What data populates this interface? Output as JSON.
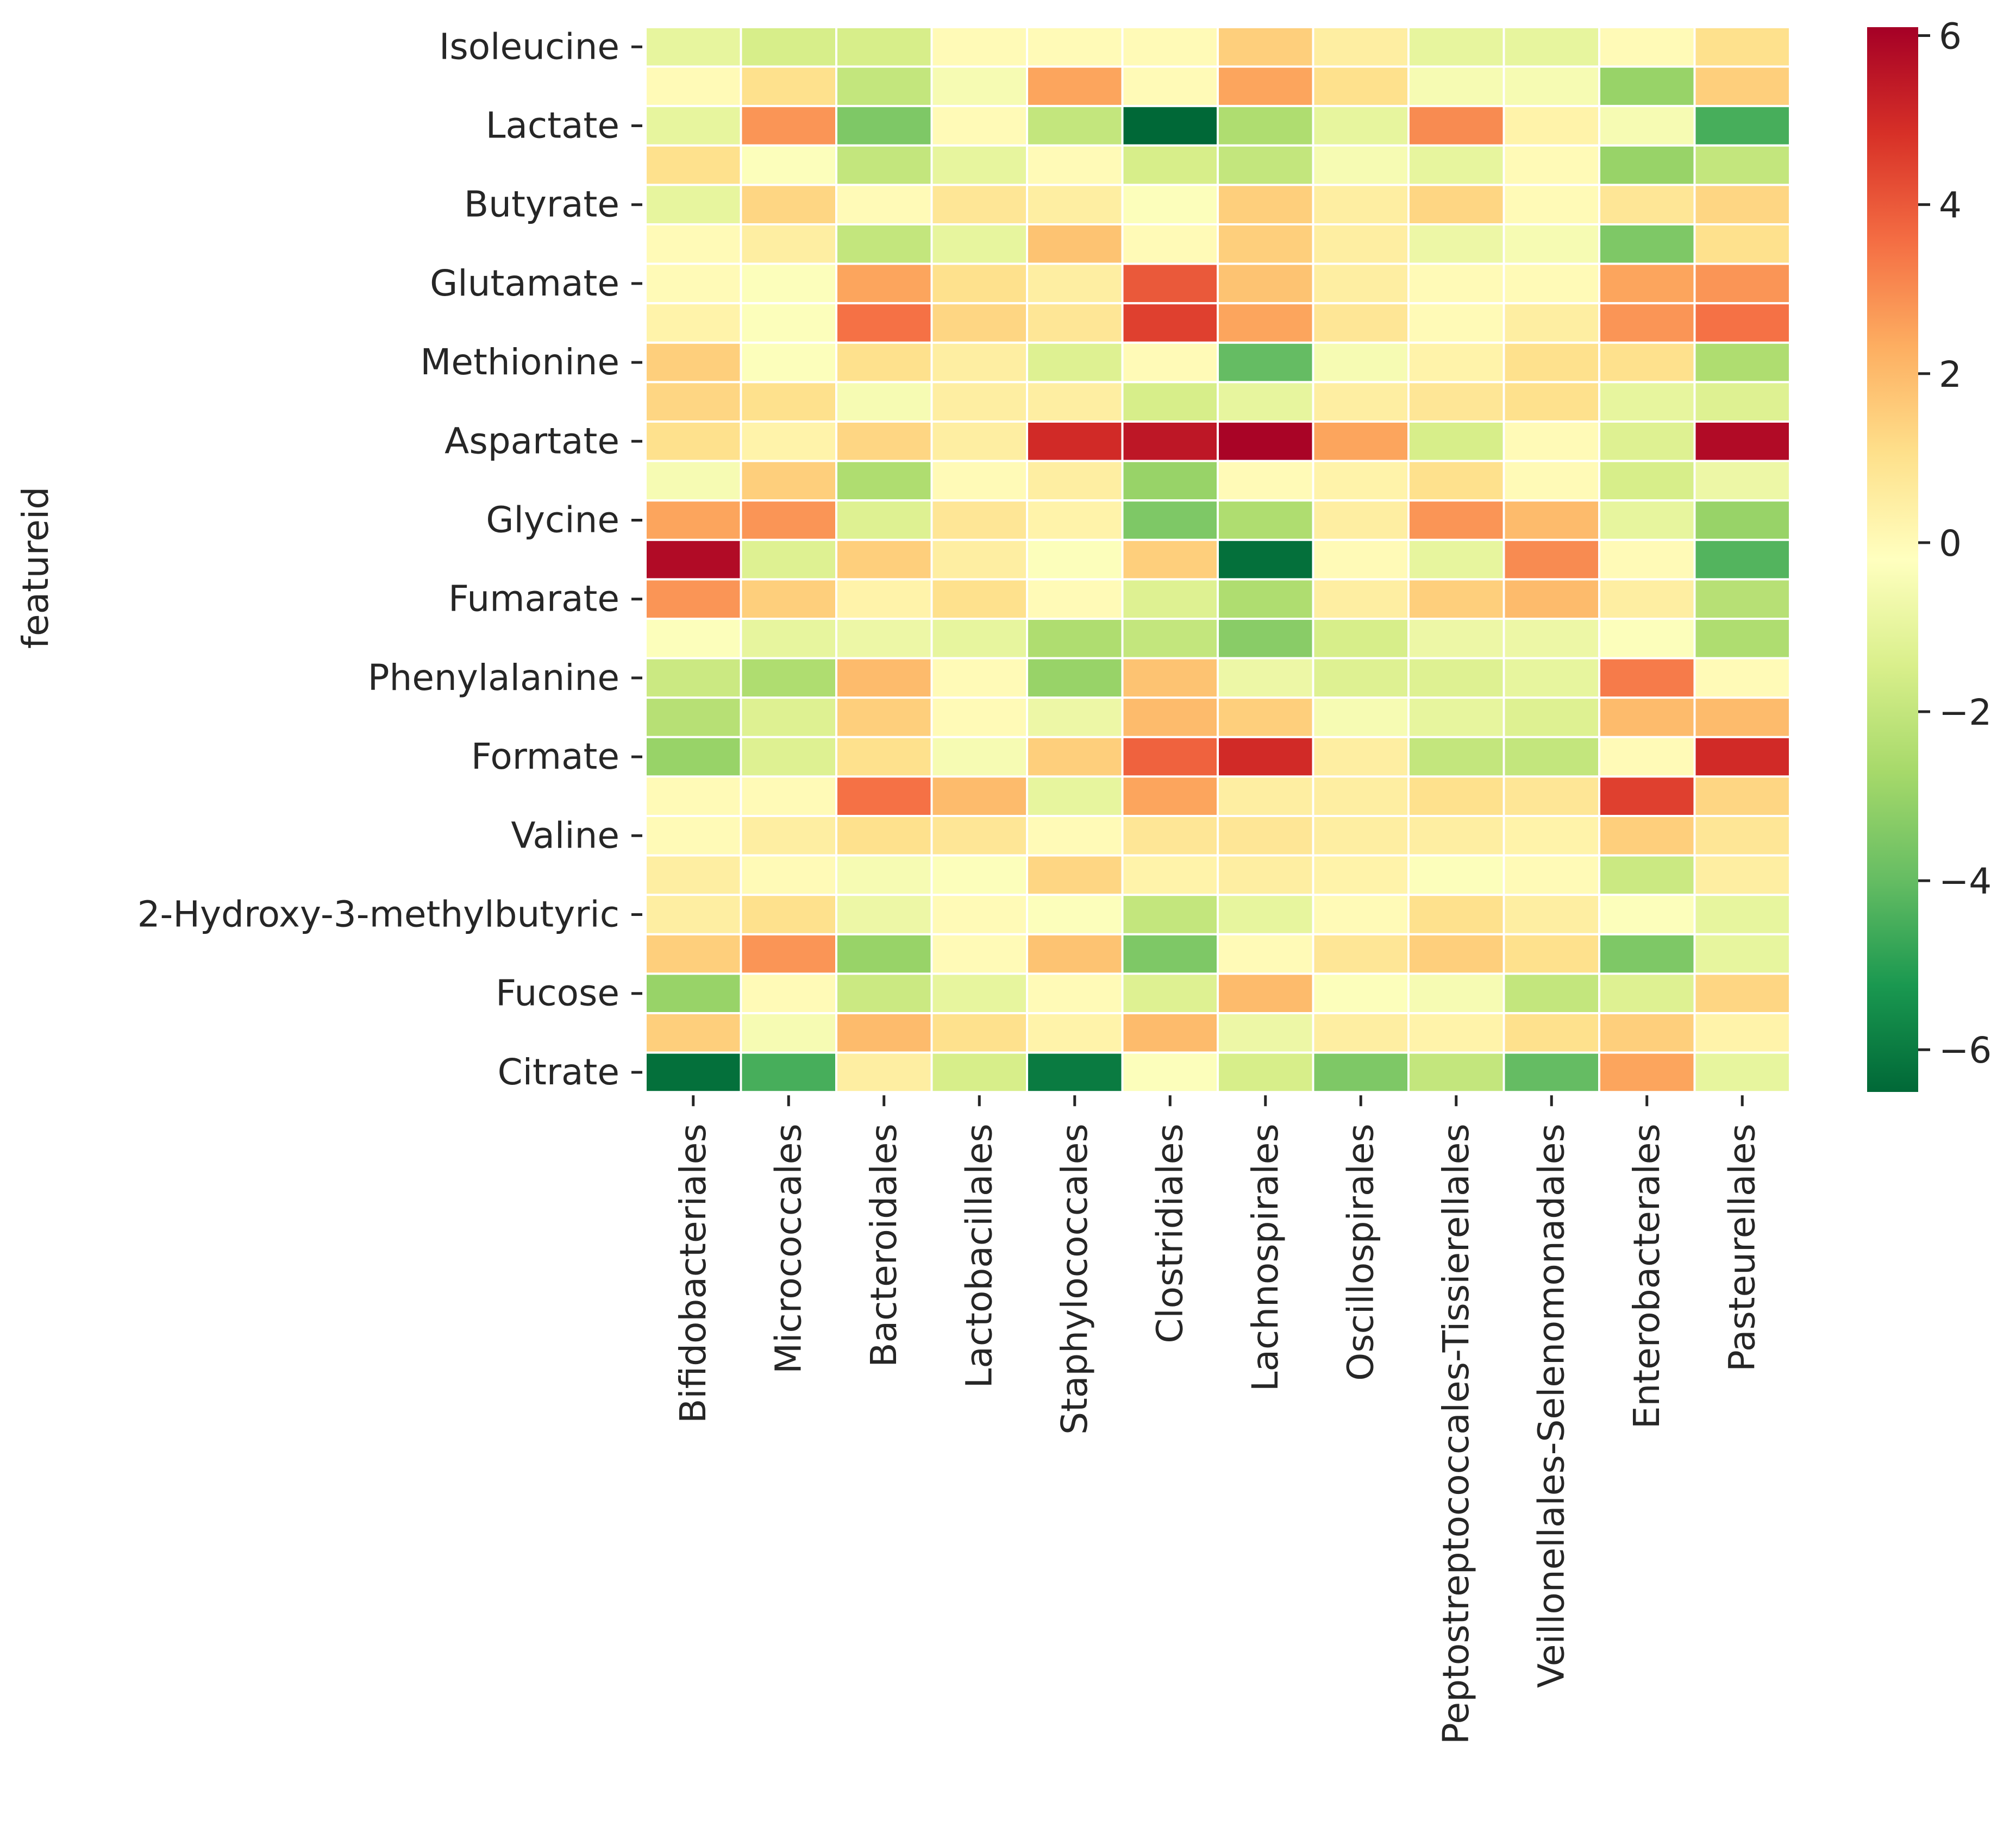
{
  "chart_data": {
    "type": "heatmap",
    "title": "",
    "xlabel": "",
    "ylabel": "featureid",
    "columns": [
      "Bifidobacteriales",
      "Micrococcales",
      "Bacteroidales",
      "Lactobacillales",
      "Staphylococcales",
      "Clostridiales",
      "Lachnospirales",
      "Oscillospirales",
      "Peptostreptococcales-Tissierellales",
      "Veillonellales-Selenomonadales",
      "Enterobacterales",
      "Pasteurellales"
    ],
    "row_tick_labels": [
      "Isoleucine",
      "Lactate",
      "Butyrate",
      "Glutamate",
      "Methionine",
      "Aspartate",
      "Glycine",
      "Fumarate",
      "Phenylalanine",
      "Formate",
      "Valine",
      "2-Hydroxy-3-methylbutyric",
      "Fucose",
      "Citrate"
    ],
    "row_tick_positions": [
      0,
      2,
      4,
      6,
      8,
      10,
      12,
      14,
      16,
      18,
      20,
      22,
      24,
      26
    ],
    "values": [
      [
        -1.0,
        -1.5,
        -1.5,
        0.0,
        0.0,
        0.0,
        1.5,
        0.5,
        -1.0,
        -1.0,
        0.0,
        1.0
      ],
      [
        0.0,
        1.0,
        -2.0,
        -0.5,
        2.5,
        0.0,
        2.5,
        1.0,
        -0.5,
        -0.5,
        -3.0,
        1.5
      ],
      [
        -1.0,
        2.8,
        -3.5,
        0.0,
        -2.0,
        -6.5,
        -2.5,
        -1.0,
        3.0,
        0.3,
        -0.5,
        -4.5
      ],
      [
        1.0,
        -0.3,
        -2.0,
        -1.0,
        0.0,
        -1.5,
        -2.0,
        -0.5,
        -1.0,
        0.0,
        -3.0,
        -2.0
      ],
      [
        -1.0,
        1.3,
        0.0,
        0.8,
        0.5,
        -0.3,
        1.5,
        0.5,
        1.3,
        0.0,
        0.8,
        1.3
      ],
      [
        0.0,
        0.5,
        -2.0,
        -1.0,
        1.8,
        0.0,
        1.5,
        0.5,
        -0.8,
        -0.5,
        -3.5,
        1.0
      ],
      [
        0.0,
        -0.3,
        2.5,
        1.0,
        0.5,
        4.0,
        1.8,
        0.5,
        0.0,
        0.0,
        2.5,
        2.8
      ],
      [
        0.3,
        -0.3,
        3.5,
        1.3,
        0.8,
        4.5,
        2.5,
        0.8,
        0.0,
        0.5,
        2.8,
        3.5
      ],
      [
        1.5,
        -0.3,
        1.0,
        0.5,
        -1.3,
        0.0,
        -4.0,
        -0.5,
        0.3,
        1.0,
        1.0,
        -2.5
      ],
      [
        1.3,
        1.0,
        -0.5,
        0.5,
        0.5,
        -1.5,
        -1.0,
        0.5,
        0.8,
        1.0,
        -1.0,
        -1.3
      ],
      [
        1.0,
        0.3,
        1.3,
        0.5,
        5.0,
        5.5,
        6.0,
        2.5,
        -1.5,
        0.0,
        -1.3,
        5.8
      ],
      [
        -0.5,
        1.5,
        -2.5,
        0.0,
        0.5,
        -3.0,
        0.0,
        0.3,
        1.0,
        0.0,
        -1.5,
        -0.8
      ],
      [
        2.5,
        2.8,
        -1.3,
        0.8,
        0.3,
        -3.5,
        -2.5,
        0.5,
        2.8,
        2.0,
        -1.0,
        -3.0
      ],
      [
        5.8,
        -1.3,
        1.5,
        0.5,
        -0.3,
        1.5,
        -6.3,
        0.0,
        -1.0,
        3.0,
        0.0,
        -4.3
      ],
      [
        2.8,
        1.5,
        0.3,
        1.0,
        0.0,
        -1.3,
        -2.5,
        0.5,
        1.5,
        2.0,
        0.5,
        -2.3
      ],
      [
        -0.3,
        -1.0,
        -0.8,
        -1.0,
        -2.5,
        -2.0,
        -3.3,
        -1.5,
        -0.8,
        -0.8,
        -0.3,
        -2.5
      ],
      [
        -1.8,
        -2.5,
        2.0,
        0.0,
        -3.0,
        1.8,
        -0.8,
        -1.3,
        -1.3,
        -1.0,
        3.3,
        0.0
      ],
      [
        -2.3,
        -1.3,
        1.5,
        0.0,
        -0.8,
        2.0,
        1.5,
        -0.5,
        -1.0,
        -1.3,
        2.0,
        2.0
      ],
      [
        -3.0,
        -1.3,
        1.0,
        -0.5,
        1.5,
        3.8,
        5.0,
        0.5,
        -2.0,
        -2.0,
        0.0,
        5.0
      ],
      [
        0.0,
        0.0,
        3.5,
        2.0,
        -1.0,
        2.5,
        0.5,
        0.5,
        1.0,
        0.8,
        4.5,
        1.3
      ],
      [
        0.0,
        0.5,
        1.0,
        0.8,
        0.0,
        0.8,
        0.8,
        0.5,
        0.5,
        0.3,
        1.5,
        0.8
      ],
      [
        0.5,
        0.0,
        -0.5,
        -0.3,
        1.3,
        0.3,
        0.5,
        0.3,
        -0.3,
        0.0,
        -1.8,
        0.5
      ],
      [
        0.5,
        1.0,
        -0.8,
        0.0,
        -0.3,
        -2.0,
        -1.0,
        0.0,
        1.0,
        0.5,
        -0.3,
        -1.0
      ],
      [
        1.5,
        2.8,
        -3.0,
        0.0,
        1.8,
        -3.5,
        0.0,
        0.8,
        1.5,
        1.0,
        -3.5,
        -1.0
      ],
      [
        -3.0,
        0.0,
        -1.8,
        -1.0,
        0.0,
        -1.3,
        2.0,
        -0.3,
        -0.5,
        -2.0,
        -1.3,
        1.3
      ],
      [
        1.5,
        -0.5,
        2.0,
        1.0,
        0.3,
        2.0,
        -0.8,
        0.5,
        0.3,
        1.0,
        1.5,
        0.3
      ],
      [
        -6.3,
        -4.5,
        0.5,
        -1.5,
        -6.0,
        -0.3,
        -1.5,
        -3.5,
        -2.0,
        -4.0,
        2.5,
        -1.0
      ]
    ],
    "colorbar": {
      "colormap": "RdYlGn_r",
      "vmin": -6.5,
      "vmax": 6.1,
      "ticks": [
        -6,
        -4,
        -2,
        0,
        2,
        4,
        6
      ],
      "tick_labels": [
        "−6",
        "−4",
        "−2",
        "0",
        "2",
        "4",
        "6"
      ]
    }
  }
}
